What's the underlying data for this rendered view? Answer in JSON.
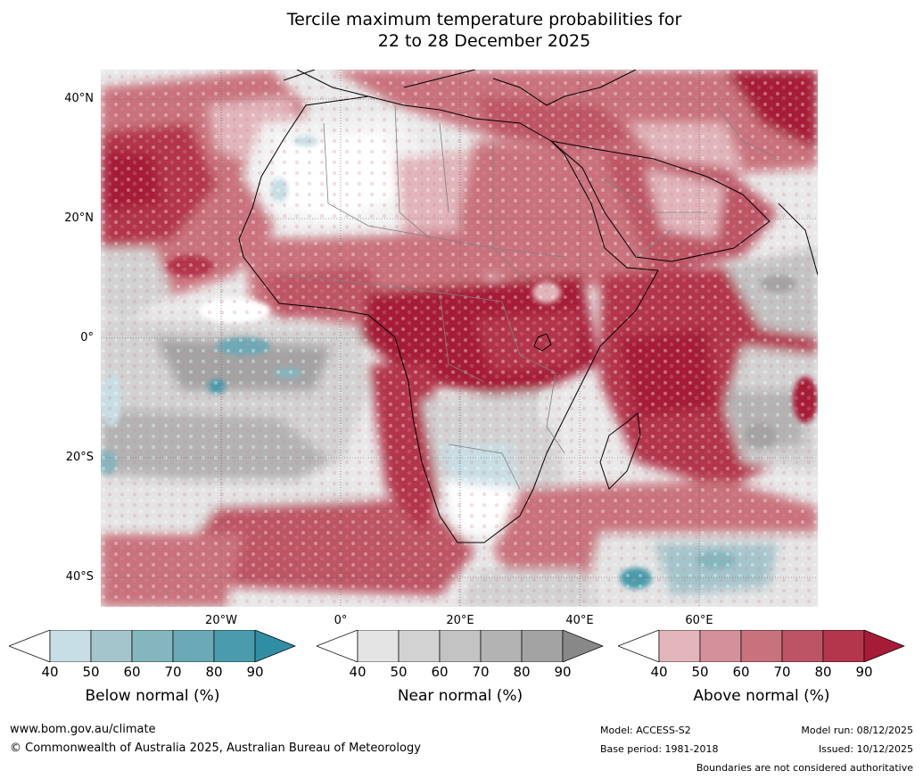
{
  "title_line1": "Tercile maximum temperature probabilities for",
  "title_line2": "22 to 28 December 2025",
  "map": {
    "latitude_labels": [
      "40°N",
      "20°N",
      "0°",
      "20°S",
      "40°S"
    ],
    "longitude_labels": [
      "20°W",
      "0°",
      "20°E",
      "40°E",
      "60°E"
    ],
    "colors": {
      "ocean_base": "#e6e6e6",
      "land_base": "#cf5868"
    }
  },
  "colorbars": [
    {
      "title": "Below normal (%)",
      "ticks": [
        "40",
        "50",
        "60",
        "70",
        "80",
        "90"
      ],
      "colors": [
        "#ffffff",
        "#c7dee4",
        "#a4c5cb",
        "#85b6bd",
        "#6aa9b5",
        "#4a9cac",
        "#2f8ea3"
      ]
    },
    {
      "title": "Near normal (%)",
      "ticks": [
        "40",
        "50",
        "60",
        "70",
        "80",
        "90"
      ],
      "colors": [
        "#ffffff",
        "#e4e4e4",
        "#d2d2d2",
        "#c3c3c3",
        "#b3b3b3",
        "#a3a3a3",
        "#888888"
      ]
    },
    {
      "title": "Above normal (%)",
      "ticks": [
        "40",
        "50",
        "60",
        "70",
        "80",
        "90"
      ],
      "colors": [
        "#ffffff",
        "#e1b5bb",
        "#d4919b",
        "#c9727d",
        "#bd5465",
        "#b3364c",
        "#a61c38"
      ]
    }
  ],
  "footer": {
    "website": "www.bom.gov.au/climate",
    "copyright": "© Commonwealth of Australia 2025, Australian Bureau of Meteorology",
    "model": "Model: ACCESS-S2",
    "base_period": "Base period: 1981-2018",
    "model_run": "Model run: 08/12/2025",
    "issued": "Issued: 10/12/2025",
    "disclaimer": "Boundaries are not considered authoritative"
  }
}
